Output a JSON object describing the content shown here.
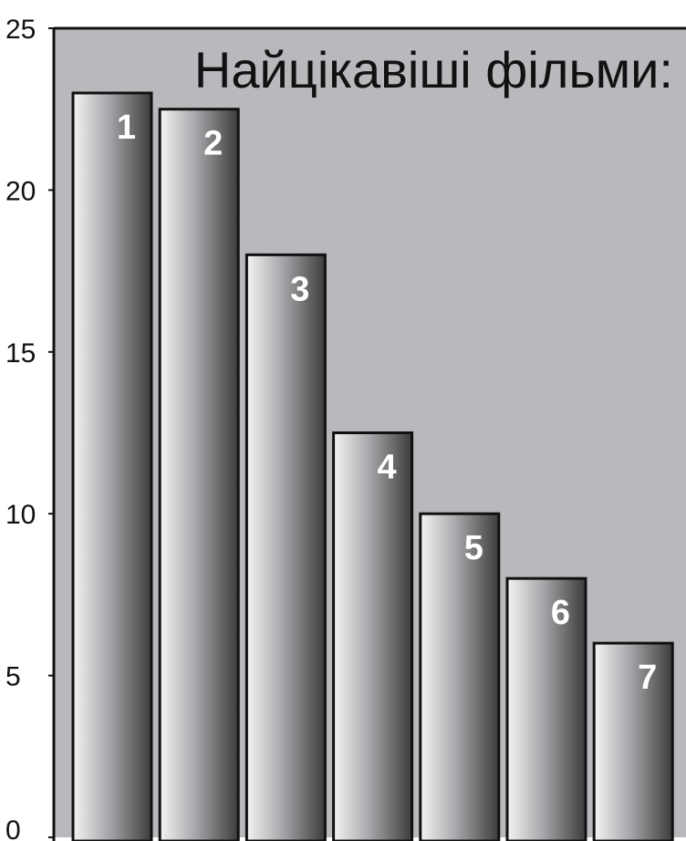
{
  "chart_data": {
    "type": "bar",
    "title": "Найцікавіші фільми:",
    "xlabel": "",
    "ylabel": "",
    "ylim": [
      0,
      25
    ],
    "yticks": [
      "0",
      "5",
      "10",
      "15",
      "20",
      "25"
    ],
    "categories": [
      "1",
      "2",
      "3",
      "4",
      "5",
      "6",
      "7"
    ],
    "values": [
      23,
      22.5,
      18,
      12.5,
      10,
      8,
      6
    ],
    "grid": false,
    "colors": {
      "plot_background": "#b9b9bd",
      "bar_light": "#f4f4f4",
      "bar_dark": "#3c3c3c",
      "bar_outline": "#111111"
    }
  }
}
